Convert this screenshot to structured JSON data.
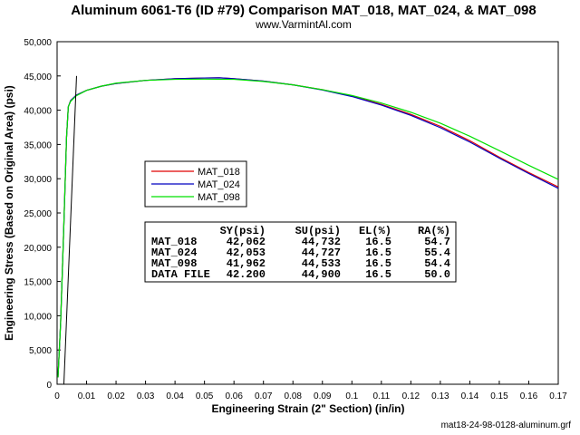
{
  "chart_data": {
    "type": "line",
    "title": "Aluminum 6061-T6 (ID #79) Comparison MAT_018, MAT_024, & MAT_098",
    "subtitle": "www.VarmintAl.com",
    "xlabel": "Engineering Strain (2\" Section) (in/in)",
    "ylabel": "Engineering Stress (Based on Original Area) (psi)",
    "xlim": [
      0,
      0.17
    ],
    "ylim": [
      0,
      50000
    ],
    "x_ticks": [
      0,
      0.01,
      0.02,
      0.03,
      0.04,
      0.05,
      0.06,
      0.07,
      0.08,
      0.09,
      0.1,
      0.11,
      0.12,
      0.13,
      0.14,
      0.15,
      0.16,
      0.17
    ],
    "x_tick_labels": [
      "0",
      "0.01",
      "0.02",
      "0.03",
      "0.04",
      "0.05",
      "0.06",
      "0.07",
      "0.08",
      "0.09",
      "0.1",
      "0.11",
      "0.12",
      "0.13",
      "0.14",
      "0.15",
      "0.16",
      "0.17"
    ],
    "y_ticks": [
      0,
      5000,
      10000,
      15000,
      20000,
      25000,
      30000,
      35000,
      40000,
      45000,
      50000
    ],
    "y_tick_labels": [
      "0",
      "5,000",
      "10,000",
      "15,000",
      "20,000",
      "25,000",
      "30,000",
      "35,000",
      "40,000",
      "45,000",
      "50,000"
    ],
    "grid": false,
    "legend_position": "center-left",
    "footer": "mat18-24-98-0128-aluminum.grf",
    "reference_line": {
      "color": "#000000",
      "points": [
        [
          0.0023,
          0
        ],
        [
          0.0066,
          45000
        ]
      ]
    },
    "series": [
      {
        "name": "MAT_018",
        "color": "#e00000",
        "points": [
          [
            0.0003,
            1000
          ],
          [
            0.0012,
            9000
          ],
          [
            0.0022,
            22000
          ],
          [
            0.0032,
            36000
          ],
          [
            0.0038,
            40500
          ],
          [
            0.0046,
            41400
          ],
          [
            0.0065,
            42200
          ],
          [
            0.01,
            42900
          ],
          [
            0.015,
            43500
          ],
          [
            0.02,
            43900
          ],
          [
            0.03,
            44350
          ],
          [
            0.04,
            44600
          ],
          [
            0.05,
            44700
          ],
          [
            0.055,
            44732
          ],
          [
            0.06,
            44600
          ],
          [
            0.07,
            44250
          ],
          [
            0.08,
            43700
          ],
          [
            0.09,
            43000
          ],
          [
            0.1,
            42050
          ],
          [
            0.11,
            40850
          ],
          [
            0.12,
            39400
          ],
          [
            0.13,
            37650
          ],
          [
            0.14,
            35550
          ],
          [
            0.15,
            33150
          ],
          [
            0.16,
            30900
          ],
          [
            0.17,
            28800
          ]
        ]
      },
      {
        "name": "MAT_024",
        "color": "#0000c0",
        "points": [
          [
            0.0003,
            1000
          ],
          [
            0.0012,
            9000
          ],
          [
            0.0022,
            22000
          ],
          [
            0.0032,
            36000
          ],
          [
            0.0038,
            40500
          ],
          [
            0.0046,
            41400
          ],
          [
            0.0065,
            42200
          ],
          [
            0.01,
            42900
          ],
          [
            0.015,
            43500
          ],
          [
            0.02,
            43900
          ],
          [
            0.03,
            44350
          ],
          [
            0.04,
            44600
          ],
          [
            0.05,
            44700
          ],
          [
            0.055,
            44727
          ],
          [
            0.06,
            44600
          ],
          [
            0.07,
            44250
          ],
          [
            0.08,
            43700
          ],
          [
            0.09,
            42950
          ],
          [
            0.1,
            42000
          ],
          [
            0.11,
            40750
          ],
          [
            0.12,
            39250
          ],
          [
            0.13,
            37450
          ],
          [
            0.14,
            35350
          ],
          [
            0.15,
            33000
          ],
          [
            0.16,
            30750
          ],
          [
            0.17,
            28600
          ]
        ]
      },
      {
        "name": "MAT_098",
        "color": "#00e000",
        "points": [
          [
            0.0003,
            1000
          ],
          [
            0.0012,
            9000
          ],
          [
            0.0022,
            22000
          ],
          [
            0.0032,
            36000
          ],
          [
            0.0038,
            40500
          ],
          [
            0.0046,
            41300
          ],
          [
            0.0065,
            42100
          ],
          [
            0.01,
            42900
          ],
          [
            0.015,
            43500
          ],
          [
            0.02,
            43950
          ],
          [
            0.03,
            44350
          ],
          [
            0.04,
            44500
          ],
          [
            0.05,
            44533
          ],
          [
            0.06,
            44500
          ],
          [
            0.07,
            44200
          ],
          [
            0.08,
            43700
          ],
          [
            0.09,
            43000
          ],
          [
            0.1,
            42150
          ],
          [
            0.11,
            41050
          ],
          [
            0.12,
            39700
          ],
          [
            0.13,
            38100
          ],
          [
            0.14,
            36200
          ],
          [
            0.15,
            34100
          ],
          [
            0.16,
            31950
          ],
          [
            0.17,
            29900
          ]
        ]
      }
    ],
    "table": {
      "headers": [
        "",
        "SY(psi)",
        "SU(psi)",
        "EL(%)",
        "RA(%)"
      ],
      "rows": [
        [
          "MAT_018",
          "42,062",
          "44,732",
          "16.5",
          "54.7"
        ],
        [
          "MAT_024",
          "42,053",
          "44,727",
          "16.5",
          "55.4"
        ],
        [
          "MAT_098",
          "41,962",
          "44,533",
          "16.5",
          "54.4"
        ],
        [
          "DATA FILE",
          "42.200",
          "44,900",
          "16.5",
          "50.0"
        ]
      ]
    }
  }
}
